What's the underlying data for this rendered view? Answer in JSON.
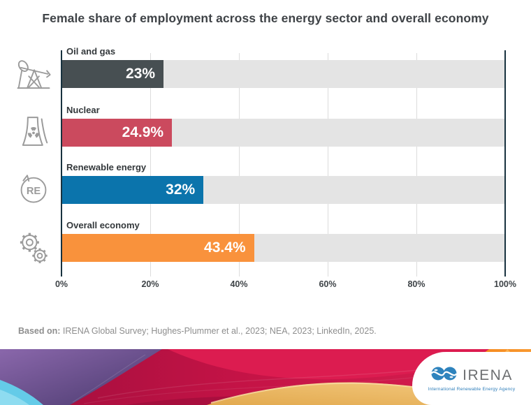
{
  "title": "Female share of employment across the energy sector and overall economy",
  "chart_data": {
    "type": "bar",
    "orientation": "horizontal",
    "title": "Female share of employment across the energy sector and overall economy",
    "categories": [
      "Oil and gas",
      "Nuclear",
      "Renewable energy",
      "Overall economy"
    ],
    "values": [
      23,
      24.9,
      32,
      43.4
    ],
    "value_labels": [
      "23%",
      "24.9%",
      "32%",
      "43.4%"
    ],
    "bar_colors": [
      "#474f52",
      "#cb4a5e",
      "#0b74ac",
      "#f9923c"
    ],
    "track_color": "#e4e4e4",
    "icons": [
      "oil-pumpjack-icon",
      "nuclear-plant-icon",
      "renewable-energy-icon",
      "gears-icon"
    ],
    "xlabel": "",
    "ylabel": "",
    "xlim": [
      0,
      100
    ],
    "x_tick_values": [
      0,
      20,
      40,
      60,
      80,
      100
    ],
    "x_tick_labels": [
      "0%",
      "20%",
      "40%",
      "60%",
      "80%",
      "100%"
    ],
    "grid": true,
    "legend": false,
    "axis_color": "#18323f",
    "gridline_color": "#dcdcdc"
  },
  "footer": {
    "prefix": "Based on:",
    "sources": " IRENA Global Survey; Hughes-Plummer et al., 2023; NEA, 2023; LinkedIn, 2025."
  },
  "logo": {
    "name": "IRENA",
    "tagline": "International Renewable Energy Agency",
    "brand_blue": "#2b7cb9"
  }
}
